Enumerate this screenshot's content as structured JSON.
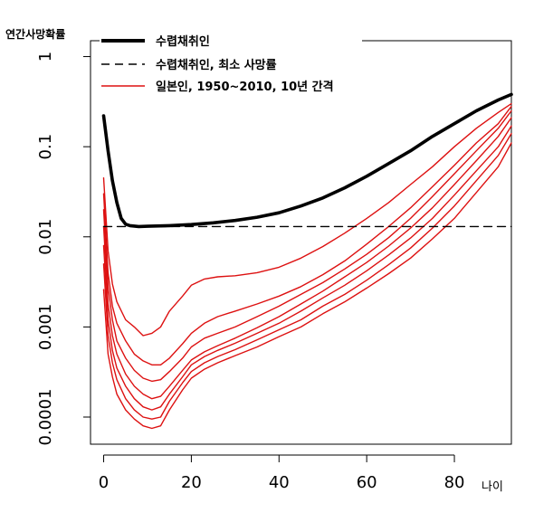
{
  "chart_data": {
    "type": "line",
    "ylabel": "연간사망확률",
    "xlabel": "나이",
    "xlim": [
      -3,
      93
    ],
    "ylim": [
      5e-05,
      1.5
    ],
    "yscale": "log",
    "x_ticks": [
      0,
      20,
      40,
      60,
      80
    ],
    "x_tick_labels": [
      "0",
      "20",
      "40",
      "60",
      "80"
    ],
    "y_ticks": [
      0.0001,
      0.001,
      0.01,
      0.1,
      1
    ],
    "y_tick_labels": [
      "0.0001",
      "0.001",
      "0.01",
      "0.1",
      "1"
    ],
    "legend_position": "top-left",
    "grid": false,
    "colors": {
      "hunter": "#000000",
      "japanese": "#dd1111"
    },
    "series": [
      {
        "name": "수렵채취인",
        "kind": "hunter",
        "x": [
          0,
          1,
          2,
          3,
          4,
          5,
          6,
          8,
          10,
          15,
          20,
          25,
          30,
          35,
          40,
          45,
          50,
          55,
          60,
          65,
          70,
          75,
          80,
          85,
          90,
          93
        ],
        "y": [
          0.22,
          0.09,
          0.042,
          0.024,
          0.016,
          0.0138,
          0.0133,
          0.013,
          0.0131,
          0.0133,
          0.0137,
          0.0143,
          0.0152,
          0.0165,
          0.0185,
          0.022,
          0.027,
          0.035,
          0.047,
          0.065,
          0.09,
          0.13,
          0.18,
          0.25,
          0.33,
          0.38
        ]
      },
      {
        "name": "수렵채취인, 최소 사망률",
        "kind": "hunter-min",
        "x": [
          0,
          93
        ],
        "y": [
          0.013,
          0.013
        ]
      },
      {
        "name": "일본인, 1950~2010, 10년 간격",
        "kind": "japanese",
        "x": [
          0,
          1,
          2,
          3,
          5,
          7,
          9,
          11,
          13,
          15,
          18,
          20,
          23,
          26,
          30,
          35,
          40,
          45,
          50,
          55,
          60,
          65,
          70,
          75,
          80,
          85,
          90,
          93
        ],
        "y": [
          0.045,
          0.007,
          0.003,
          0.0019,
          0.0012,
          0.001,
          0.0008,
          0.00085,
          0.001,
          0.0015,
          0.0022,
          0.0029,
          0.0034,
          0.0036,
          0.0037,
          0.004,
          0.0046,
          0.0058,
          0.0078,
          0.011,
          0.016,
          0.024,
          0.038,
          0.06,
          0.1,
          0.16,
          0.24,
          0.3
        ]
      },
      {
        "name": "",
        "kind": "japanese",
        "x": [
          0,
          1,
          2,
          3,
          5,
          7,
          9,
          11,
          13,
          15,
          18,
          20,
          23,
          26,
          30,
          35,
          40,
          45,
          50,
          55,
          60,
          65,
          70,
          75,
          80,
          85,
          90,
          93
        ],
        "y": [
          0.03,
          0.004,
          0.0017,
          0.0011,
          0.0007,
          0.0005,
          0.00042,
          0.00038,
          0.00038,
          0.00045,
          0.00065,
          0.00085,
          0.0011,
          0.0013,
          0.0015,
          0.0018,
          0.0022,
          0.0028,
          0.0038,
          0.0054,
          0.0083,
          0.013,
          0.021,
          0.036,
          0.062,
          0.11,
          0.18,
          0.28
        ]
      },
      {
        "name": "",
        "kind": "japanese",
        "x": [
          0,
          1,
          2,
          3,
          5,
          7,
          9,
          11,
          13,
          15,
          18,
          20,
          23,
          26,
          30,
          35,
          40,
          45,
          50,
          55,
          60,
          65,
          70,
          75,
          80,
          85,
          90,
          93
        ],
        "y": [
          0.02,
          0.0028,
          0.0012,
          0.0007,
          0.00045,
          0.00033,
          0.00027,
          0.00025,
          0.00026,
          0.00032,
          0.00045,
          0.0006,
          0.00075,
          0.00085,
          0.001,
          0.0013,
          0.0017,
          0.0023,
          0.0031,
          0.0044,
          0.0064,
          0.0098,
          0.016,
          0.028,
          0.05,
          0.09,
          0.16,
          0.25
        ]
      },
      {
        "name": "",
        "kind": "japanese",
        "x": [
          0,
          1,
          2,
          3,
          5,
          7,
          9,
          11,
          13,
          15,
          18,
          20,
          23,
          26,
          30,
          35,
          40,
          45,
          50,
          55,
          60,
          65,
          70,
          75,
          80,
          85,
          90,
          93
        ],
        "y": [
          0.013,
          0.0018,
          0.0008,
          0.0005,
          0.0003,
          0.00022,
          0.00018,
          0.00016,
          0.00017,
          0.00022,
          0.00033,
          0.00043,
          0.00053,
          0.00062,
          0.00075,
          0.00098,
          0.0013,
          0.0018,
          0.0025,
          0.0036,
          0.0052,
          0.0079,
          0.0125,
          0.021,
          0.038,
          0.07,
          0.13,
          0.21
        ]
      },
      {
        "name": "",
        "kind": "japanese",
        "x": [
          0,
          1,
          2,
          3,
          5,
          7,
          9,
          11,
          13,
          15,
          18,
          20,
          23,
          26,
          30,
          35,
          40,
          45,
          50,
          55,
          60,
          65,
          70,
          75,
          80,
          85,
          90,
          93
        ],
        "y": [
          0.008,
          0.0012,
          0.00055,
          0.00035,
          0.00022,
          0.00016,
          0.00013,
          0.00012,
          0.00013,
          0.00018,
          0.00028,
          0.00038,
          0.00047,
          0.00055,
          0.00066,
          0.00085,
          0.0011,
          0.0015,
          0.0021,
          0.0029,
          0.0042,
          0.0063,
          0.0097,
          0.016,
          0.029,
          0.054,
          0.1,
          0.17
        ]
      },
      {
        "name": "",
        "kind": "japanese",
        "x": [
          0,
          1,
          2,
          3,
          5,
          7,
          9,
          11,
          13,
          15,
          18,
          20,
          23,
          26,
          30,
          35,
          40,
          45,
          50,
          55,
          60,
          65,
          70,
          75,
          80,
          85,
          90,
          93
        ],
        "y": [
          0.005,
          0.0008,
          0.0004,
          0.00026,
          0.00016,
          0.00012,
          0.0001,
          9.5e-05,
          0.0001,
          0.00015,
          0.00024,
          0.00032,
          0.0004,
          0.00047,
          0.00056,
          0.00072,
          0.00093,
          0.0012,
          0.0017,
          0.0023,
          0.0033,
          0.0049,
          0.0075,
          0.0125,
          0.022,
          0.042,
          0.08,
          0.14
        ]
      },
      {
        "name": "",
        "kind": "japanese",
        "x": [
          0,
          1,
          2,
          3,
          5,
          7,
          9,
          11,
          13,
          15,
          18,
          20,
          23,
          26,
          30,
          35,
          40,
          45,
          50,
          55,
          60,
          65,
          70,
          75,
          80,
          85,
          90,
          93
        ],
        "y": [
          0.0026,
          0.0005,
          0.00028,
          0.00018,
          0.00012,
          9.5e-05,
          8e-05,
          7.5e-05,
          8e-05,
          0.00012,
          0.0002,
          0.00027,
          0.00034,
          0.0004,
          0.00048,
          0.0006,
          0.00078,
          0.001,
          0.0014,
          0.0019,
          0.0027,
          0.0039,
          0.0058,
          0.0095,
          0.016,
          0.031,
          0.06,
          0.11
        ]
      }
    ]
  }
}
